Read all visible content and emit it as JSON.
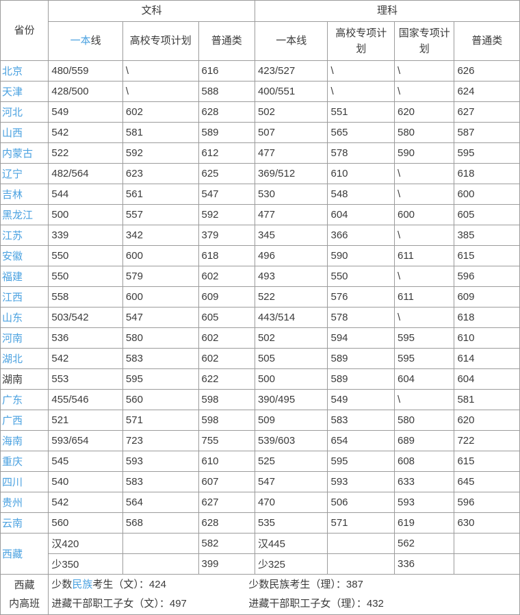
{
  "colors": {
    "link_blue": "#4aa1e0",
    "text": "#3a3a3a",
    "border": "#9b9b9b",
    "background": "#ffffff"
  },
  "header": {
    "province": "省份",
    "wenke": "文科",
    "like": "理科",
    "wen_yiben_blue": "一本",
    "wen_yiben_rest": "线",
    "li_yiben": "一本线",
    "gaoxiao_wen": "高校专项计划",
    "gaoxiao_li": "高校专项计划",
    "guojia": "国家专项计划",
    "putong_wen": "普通类",
    "putong_li": "普通类"
  },
  "rows": [
    {
      "province": "北京",
      "blue": true,
      "cells": [
        "480/559",
        "\\",
        "616",
        "423/527",
        "\\",
        "\\",
        "626"
      ]
    },
    {
      "province": "天津",
      "blue": true,
      "cells": [
        "428/500",
        "\\",
        "588",
        "400/551",
        "\\",
        "\\",
        "624"
      ]
    },
    {
      "province": "河北",
      "blue": true,
      "cells": [
        "549",
        "602",
        "628",
        "502",
        "551",
        "620",
        "627"
      ]
    },
    {
      "province": "山西",
      "blue": true,
      "cells": [
        "542",
        "581",
        "589",
        "507",
        "565",
        "580",
        "587"
      ]
    },
    {
      "province": "内蒙古",
      "blue": true,
      "cells": [
        "522",
        "592",
        "612",
        "477",
        "578",
        "590",
        "595"
      ]
    },
    {
      "province": "辽宁",
      "blue": true,
      "cells": [
        "482/564",
        "623",
        "625",
        "369/512",
        "610",
        "\\",
        "618"
      ]
    },
    {
      "province": "吉林",
      "blue": true,
      "cells": [
        "544",
        "561",
        "547",
        "530",
        "548",
        "\\",
        "600"
      ]
    },
    {
      "province": "黑龙江",
      "blue": true,
      "cells": [
        "500",
        "557",
        "592",
        "477",
        "604",
        "600",
        "605"
      ]
    },
    {
      "province": "江苏",
      "blue": true,
      "cells": [
        "339",
        "342",
        "379",
        "345",
        "366",
        "\\",
        "385"
      ]
    },
    {
      "province": "安徽",
      "blue": true,
      "cells": [
        "550",
        "600",
        "618",
        "496",
        "590",
        "611",
        "615"
      ]
    },
    {
      "province": "福建",
      "blue": true,
      "cells": [
        "550",
        "579",
        "602",
        "493",
        "550",
        "\\",
        "596"
      ]
    },
    {
      "province": "江西",
      "blue": true,
      "cells": [
        "558",
        "600",
        "609",
        "522",
        "576",
        "611",
        "609"
      ]
    },
    {
      "province": "山东",
      "blue": true,
      "cells": [
        "503/542",
        "547",
        "605",
        "443/514",
        "578",
        "\\",
        "618"
      ]
    },
    {
      "province": "河南",
      "blue": true,
      "cells": [
        "536",
        "580",
        "602",
        "502",
        "594",
        "595",
        "610"
      ]
    },
    {
      "province": "湖北",
      "blue": true,
      "cells": [
        "542",
        "583",
        "602",
        "505",
        "589",
        "595",
        "614"
      ]
    },
    {
      "province": "湖南",
      "blue": false,
      "cells": [
        "553",
        "595",
        "622",
        "500",
        "589",
        "604",
        "604"
      ]
    },
    {
      "province": "广东",
      "blue": true,
      "cells": [
        "455/546",
        "560",
        "598",
        "390/495",
        "549",
        "\\",
        "581"
      ]
    },
    {
      "province": "广西",
      "blue": true,
      "cells": [
        "521",
        "571",
        "598",
        "509",
        "583",
        "580",
        "620"
      ]
    },
    {
      "province": "海南",
      "blue": true,
      "cells": [
        "593/654",
        "723",
        "755",
        "539/603",
        "654",
        "689",
        "722"
      ]
    },
    {
      "province": "重庆",
      "blue": true,
      "cells": [
        "545",
        "593",
        "610",
        "525",
        "595",
        "608",
        "615"
      ]
    },
    {
      "province": "四川",
      "blue": true,
      "cells": [
        "540",
        "583",
        "607",
        "547",
        "593",
        "633",
        "645"
      ]
    },
    {
      "province": "贵州",
      "blue": true,
      "cells": [
        "542",
        "564",
        "627",
        "470",
        "506",
        "593",
        "596"
      ]
    },
    {
      "province": "云南",
      "blue": true,
      "cells": [
        "560",
        "568",
        "628",
        "535",
        "571",
        "619",
        "630"
      ]
    }
  ],
  "tibet": {
    "province": "西藏",
    "rows": [
      [
        "汉420",
        "",
        "582",
        "汉445",
        "",
        "562",
        ""
      ],
      [
        "少350",
        "",
        "399",
        "少325",
        "",
        "336",
        ""
      ]
    ]
  },
  "footer": {
    "label_line1": "西藏",
    "label_line2": "内高班",
    "wen1_pre": "少数",
    "wen1_link": "民族",
    "wen1_post": "考生（文）：424",
    "wen2": "进藏干部职工子女（文）：497",
    "li1": "少数民族考生（理）：387",
    "li2": "进藏干部职工子女（理）：432"
  }
}
